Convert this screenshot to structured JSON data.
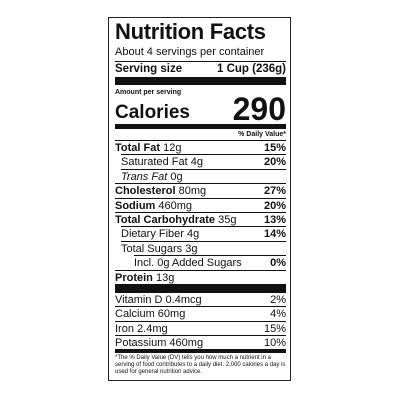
{
  "label": {
    "title": "Nutrition Facts",
    "servings": "About 4 servings per container",
    "serving_size_label": "Serving size",
    "serving_size": "1 Cup (236g)",
    "amount_per_serving": "Amount per serving",
    "calories_label": "Calories",
    "calories": "290",
    "dv_header": "% Daily Value*",
    "nutrients": [
      {
        "name": "Total Fat",
        "amount": "12g",
        "dv": "15%"
      },
      {
        "name": "Saturated Fat",
        "amount": "4g",
        "dv": "20%"
      },
      {
        "name": "Trans Fat",
        "amount": "0g"
      },
      {
        "name": "Cholesterol",
        "amount": "80mg",
        "dv": "27%"
      },
      {
        "name": "Sodium",
        "amount": "460mg",
        "dv": "20%"
      },
      {
        "name": "Total Carbohydrate",
        "amount": "35g",
        "dv": "13%"
      },
      {
        "name": "Dietary Fiber",
        "amount": "4g",
        "dv": "14%"
      },
      {
        "name": "Total Sugars",
        "amount": "3g"
      },
      {
        "name": "Incl. 0g Added Sugars",
        "dv": "0%"
      },
      {
        "name": "Protein",
        "amount": "13g"
      }
    ],
    "vitamins": [
      {
        "name": "Vitamin D",
        "amount": "0.4mcg",
        "dv": "2%"
      },
      {
        "name": "Calcium",
        "amount": "60mg",
        "dv": "4%"
      },
      {
        "name": "Iron",
        "amount": "2.4mg",
        "dv": "15%"
      },
      {
        "name": "Potassium",
        "amount": "460mg",
        "dv": "10%"
      }
    ],
    "footnote": "*The % Daily Value (DV) tells you how much a nutrient in a serving of food contributes to a daily diet. 2,000 calories a day is used for general nutrition advice."
  }
}
